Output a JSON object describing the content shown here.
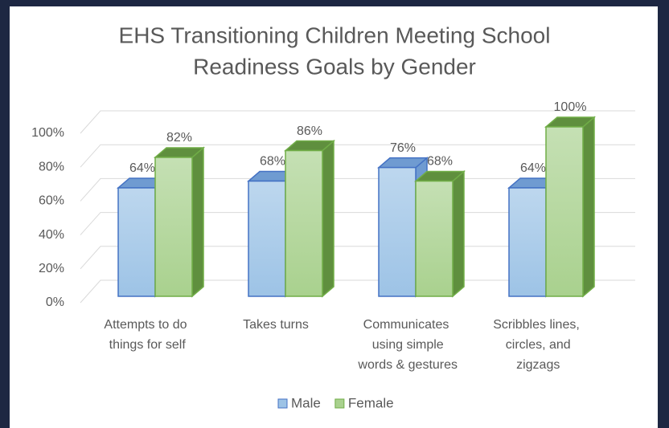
{
  "chart_data": {
    "type": "bar3d",
    "title": [
      "EHS Transitioning Children Meeting School",
      "Readiness Goals by Gender"
    ],
    "categories": [
      "Attempts to do things for self",
      "Takes turns",
      "Communicates using simple words & gestures",
      "Scribbles lines, circles, and zigzags"
    ],
    "series": [
      {
        "name": "Male",
        "color": "#9dc3e6",
        "edge": "#4472c4",
        "side": "#6f9bd1",
        "values": [
          64,
          68,
          76,
          64
        ],
        "value_labels": [
          "64%",
          "68%",
          "76%",
          "64%"
        ]
      },
      {
        "name": "Female",
        "color": "#a9d18e",
        "edge": "#70ad47",
        "side": "#5f8f3e",
        "values": [
          82,
          86,
          68,
          100
        ],
        "value_labels": [
          "82%",
          "86%",
          "68%",
          "100%"
        ]
      }
    ],
    "ylim": [
      0,
      100
    ],
    "yticks": [
      {
        "value": 0,
        "label": "0%"
      },
      {
        "value": 20,
        "label": "20%"
      },
      {
        "value": 40,
        "label": "40%"
      },
      {
        "value": 60,
        "label": "60%"
      },
      {
        "value": 80,
        "label": "80%"
      },
      {
        "value": 100,
        "label": "100%"
      }
    ],
    "grid": true,
    "legend": "bottom"
  }
}
